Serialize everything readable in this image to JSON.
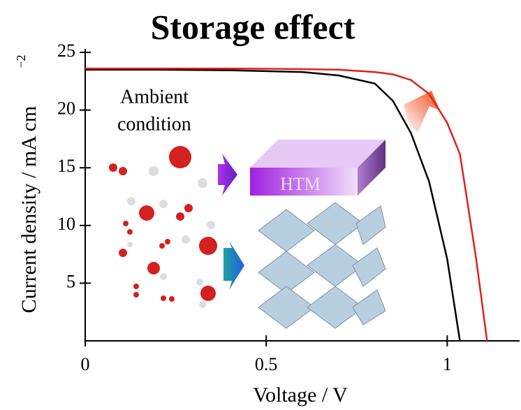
{
  "chart_data": {
    "type": "line",
    "title": "Storage effect",
    "x_label": "Voltage / V",
    "y_label": "Current density / mA cm",
    "y_label_superscript": "−2",
    "annotations": [
      "Ambient",
      "condition",
      "HTM"
    ],
    "x": [
      0,
      0.2,
      0.4,
      0.6,
      0.7,
      0.8,
      0.85,
      0.9,
      0.95,
      1.0,
      1.035,
      1.05,
      1.08,
      1.11
    ],
    "series": [
      {
        "color": "#000000",
        "values": [
          23.5,
          23.5,
          23.45,
          23.3,
          23.0,
          22.3,
          20.8,
          18.0,
          13.8,
          7.1,
          0,
          null,
          null,
          null
        ]
      },
      {
        "color": "#e0201b",
        "values": [
          23.6,
          23.6,
          23.6,
          23.55,
          23.5,
          23.3,
          23.1,
          22.6,
          21.4,
          18.9,
          16.2,
          13.2,
          7.1,
          0
        ]
      }
    ],
    "xlim": [
      0,
      1.2
    ],
    "ylim": [
      0,
      25
    ],
    "xticks": [
      0,
      0.5,
      1
    ],
    "yticks": [
      5,
      10,
      15,
      20,
      25
    ]
  }
}
